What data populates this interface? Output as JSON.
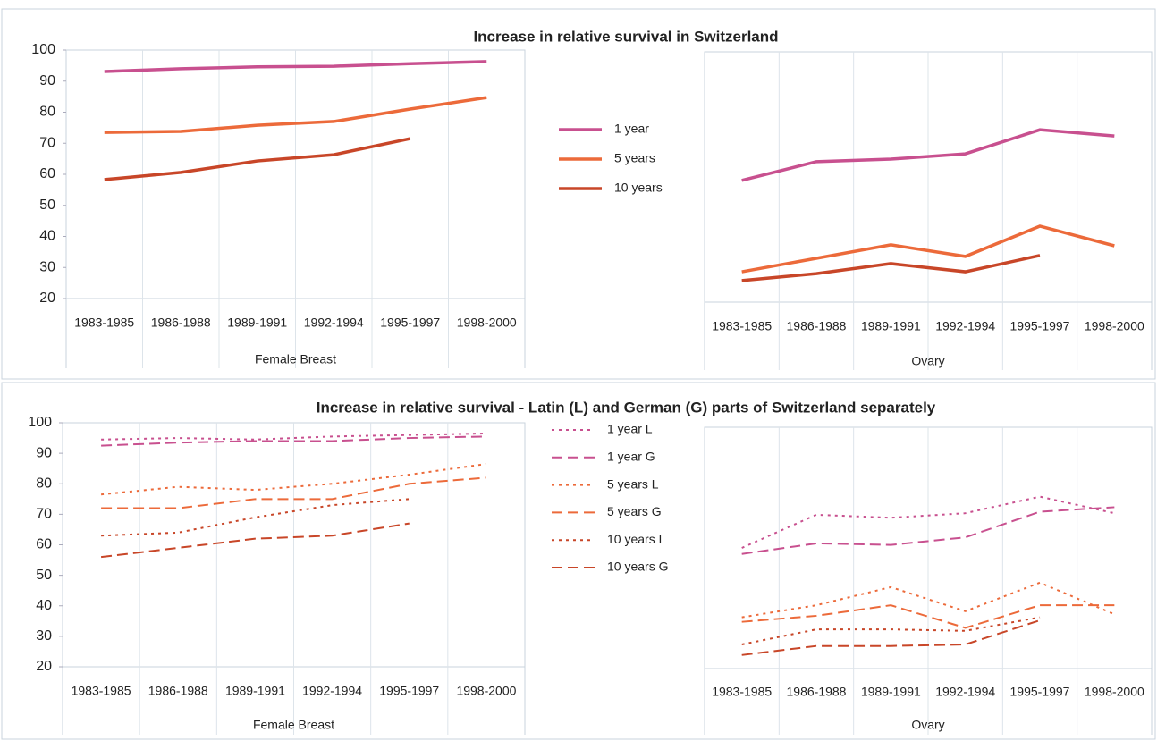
{
  "chart_data": [
    {
      "type": "line",
      "title": "Increase in relative survival in Switzerland",
      "xlabel": "Female Breast",
      "categories": [
        "1983-1985",
        "1986-1988",
        "1989-1991",
        "1992-1994",
        "1995-1997",
        "1998-2000"
      ],
      "ylim": [
        20,
        100
      ],
      "yticks": [
        20,
        30,
        40,
        50,
        60,
        70,
        80,
        90,
        100
      ],
      "series": [
        {
          "name": "1 year",
          "color": "#c8508f",
          "dash": "solid",
          "values": [
            93.1,
            94,
            94.6,
            94.8,
            95.6,
            96.3
          ]
        },
        {
          "name": "5 years",
          "color": "#ec6a3a",
          "dash": "solid",
          "values": [
            73.5,
            73.8,
            75.8,
            77,
            81,
            84.7
          ]
        },
        {
          "name": "10 years",
          "color": "#c84628",
          "dash": "solid",
          "values": [
            58.3,
            60.6,
            64.3,
            66.3,
            71.5,
            null
          ]
        }
      ]
    },
    {
      "type": "line",
      "xlabel": "Ovary",
      "categories": [
        "1983-1985",
        "1986-1988",
        "1989-1991",
        "1992-1994",
        "1995-1997",
        "1998-2000"
      ],
      "ylim": [
        20,
        100
      ],
      "series": [
        {
          "color": "#c8508f",
          "dash": "solid",
          "values": [
            58.9,
            64.9,
            65.7,
            67.4,
            75.1,
            73.1
          ]
        },
        {
          "color": "#ec6a3a",
          "dash": "solid",
          "values": [
            29.7,
            34,
            38.3,
            34.6,
            44.3,
            38
          ]
        },
        {
          "color": "#c84628",
          "dash": "solid",
          "values": [
            26.9,
            29.1,
            32.3,
            29.7,
            34.9,
            null
          ]
        }
      ]
    },
    {
      "type": "line",
      "title": "Increase in relative survival - Latin (L) and German (G) parts of Switzerland separately",
      "xlabel": "Female Breast",
      "categories": [
        "1983-1985",
        "1986-1988",
        "1989-1991",
        "1992-1994",
        "1995-1997",
        "1998-2000"
      ],
      "ylim": [
        20,
        100
      ],
      "yticks": [
        20,
        30,
        40,
        50,
        60,
        70,
        80,
        90,
        100
      ],
      "series": [
        {
          "name": "1 year L",
          "color": "#c8508f",
          "dash": "dotted",
          "values": [
            94.5,
            95,
            94.5,
            95.5,
            96,
            96.5
          ]
        },
        {
          "name": "1 year G",
          "color": "#c8508f",
          "dash": "dashed",
          "values": [
            92.5,
            93.5,
            94,
            94,
            95,
            95.5
          ]
        },
        {
          "name": "5 years L",
          "color": "#ec6a3a",
          "dash": "dotted",
          "values": [
            76.5,
            79,
            78,
            80,
            83,
            86.5
          ]
        },
        {
          "name": "5 years G",
          "color": "#ec6a3a",
          "dash": "dashed",
          "values": [
            72,
            72,
            75,
            75,
            80,
            82
          ]
        },
        {
          "name": "10 years L",
          "color": "#c84628",
          "dash": "dotted",
          "values": [
            63,
            64,
            69,
            73,
            75,
            null
          ]
        },
        {
          "name": "10 years G",
          "color": "#c84628",
          "dash": "dashed",
          "values": [
            56,
            59,
            62,
            63,
            67,
            null
          ]
        }
      ]
    },
    {
      "type": "line",
      "xlabel": "Ovary",
      "categories": [
        "1983-1985",
        "1986-1988",
        "1989-1991",
        "1992-1994",
        "1995-1997",
        "1998-2000"
      ],
      "ylim": [
        20,
        100
      ],
      "series": [
        {
          "color": "#c8508f",
          "dash": "dotted",
          "values": [
            60,
            71,
            70,
            71.5,
            77,
            71.5
          ]
        },
        {
          "color": "#c8508f",
          "dash": "dashed",
          "values": [
            58,
            61.5,
            61,
            63.5,
            72,
            73.5
          ]
        },
        {
          "color": "#ec6a3a",
          "dash": "dotted",
          "values": [
            37,
            41,
            47,
            39,
            48.5,
            38
          ]
        },
        {
          "color": "#ec6a3a",
          "dash": "dashed",
          "values": [
            35.5,
            37.5,
            41,
            33.5,
            41,
            41
          ]
        },
        {
          "color": "#c84628",
          "dash": "dotted",
          "values": [
            28,
            33,
            33,
            32.5,
            37,
            null
          ]
        },
        {
          "color": "#c84628",
          "dash": "dashed",
          "values": [
            24.5,
            27.5,
            27.5,
            28,
            36,
            null
          ]
        }
      ]
    }
  ]
}
